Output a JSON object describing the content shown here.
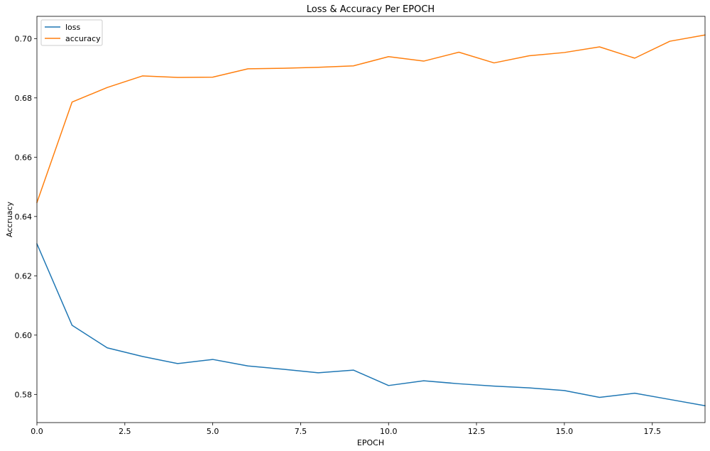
{
  "chart_data": {
    "type": "line",
    "title": "Loss & Accuracy Per EPOCH",
    "xlabel": "EPOCH",
    "ylabel": "Accruacy",
    "x": [
      0,
      1,
      2,
      3,
      4,
      5,
      6,
      7,
      8,
      9,
      10,
      11,
      12,
      13,
      14,
      15,
      16,
      17,
      18,
      19
    ],
    "xlim": [
      0,
      19
    ],
    "ylim": [
      0.5705,
      0.7075
    ],
    "xticks": [
      0.0,
      2.5,
      5.0,
      7.5,
      10.0,
      12.5,
      15.0,
      17.5
    ],
    "xtick_labels": [
      "0.0",
      "2.5",
      "5.0",
      "7.5",
      "10.0",
      "12.5",
      "15.0",
      "17.5"
    ],
    "yticks": [
      0.58,
      0.6,
      0.62,
      0.64,
      0.66,
      0.68,
      0.7
    ],
    "ytick_labels": [
      "0.58",
      "0.60",
      "0.62",
      "0.64",
      "0.66",
      "0.68",
      "0.70"
    ],
    "grid": false,
    "legend_position": "top-left",
    "series": [
      {
        "name": "loss",
        "color": "#1f77b4",
        "values": [
          0.6308,
          0.6033,
          0.5957,
          0.5928,
          0.5904,
          0.5918,
          0.5896,
          0.5885,
          0.5873,
          0.5882,
          0.583,
          0.5846,
          0.5836,
          0.5828,
          0.5822,
          0.5813,
          0.579,
          0.5804,
          0.5783,
          0.5762
        ]
      },
      {
        "name": "accuracy",
        "color": "#ff7f0e",
        "values": [
          0.6447,
          0.6786,
          0.6835,
          0.6874,
          0.6869,
          0.687,
          0.6898,
          0.69,
          0.6903,
          0.6908,
          0.6939,
          0.6924,
          0.6954,
          0.6918,
          0.6942,
          0.6953,
          0.6972,
          0.6934,
          0.6991,
          0.7012
        ]
      }
    ]
  }
}
